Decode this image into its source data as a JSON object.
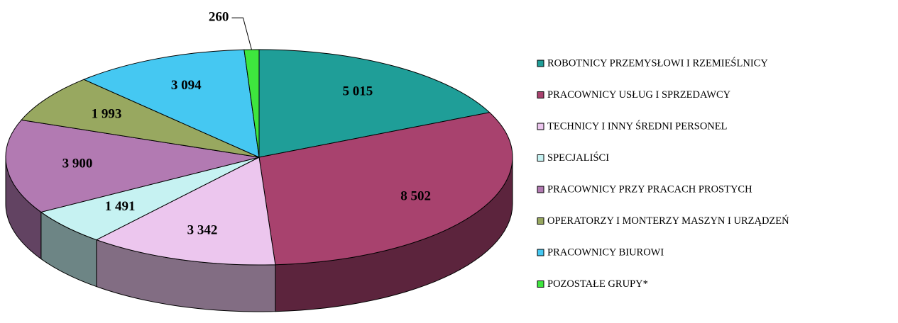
{
  "chart_data": {
    "type": "pie",
    "categories": [
      "ROBOTNICY PRZEMYSŁOWI I RZEMIEŚLNICY",
      "PRACOWNICY USŁUG I SPRZEDAWCY",
      "TECHNICY I INNY ŚREDNI PERSONEL",
      "SPECJALIŚCI",
      "PRACOWNICY PRZY PRACACH PROSTYCH",
      "OPERATORZY I MONTERZY MASZYN I URZĄDZEŃ",
      "PRACOWNICY BIUROWI",
      "POZOSTAŁE GRUPY*"
    ],
    "values": [
      5015,
      8502,
      3342,
      1491,
      3900,
      1993,
      3094,
      260
    ],
    "value_labels": [
      "5 015",
      "8 502",
      "3 342",
      "1 491",
      "3 900",
      "1 993",
      "3 094",
      "260"
    ],
    "colors": [
      "#1f9e98",
      "#a8426e",
      "#ecc6ee",
      "#c6f2f2",
      "#b27ab2",
      "#98a860",
      "#45c8f2",
      "#3ee63e"
    ],
    "legend": "right"
  }
}
